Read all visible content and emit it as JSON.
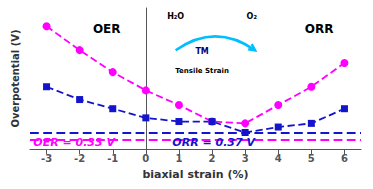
{
  "chart_data": {
    "type": "line",
    "x": [
      -3,
      -2,
      -1,
      0,
      1,
      2,
      3,
      4,
      5,
      6
    ],
    "series": [
      {
        "color": "#FF00FF",
        "marker": "circle",
        "line_style": "dashed",
        "values": [
          0.95,
          0.82,
          0.7,
          0.6,
          0.52,
          0.43,
          0.42,
          0.52,
          0.62,
          0.75
        ],
        "min_line": 0.33
      },
      {
        "color": "#1414CC",
        "marker": "square",
        "line_style": "dashed",
        "values": [
          0.62,
          0.55,
          0.5,
          0.45,
          0.43,
          0.43,
          0.37,
          0.4,
          0.42,
          0.5
        ],
        "min_line": 0.37
      }
    ],
    "xlabel": "biaxial strain (%)",
    "ylabel": "Overpotential (V)",
    "xlim": [
      -3.5,
      6.5
    ],
    "ylim": [
      0.28,
      1.05
    ],
    "xticks": [
      -3,
      -2,
      -1,
      0,
      1,
      2,
      3,
      4,
      5,
      6
    ],
    "tick_labels": "x",
    "grid": false,
    "annotations": [
      {
        "text": "OER"
      },
      {
        "text": "ORR"
      },
      {
        "text": "OER = 0.33 V",
        "color": "#FF00FF"
      },
      {
        "text": "ORR = 0.37 V",
        "color": "#1414CC"
      },
      {
        "text": "H₂O"
      },
      {
        "text": "O₂"
      },
      {
        "text": "TM",
        "color": "navy"
      },
      {
        "text": "Tensile Strain"
      }
    ]
  }
}
